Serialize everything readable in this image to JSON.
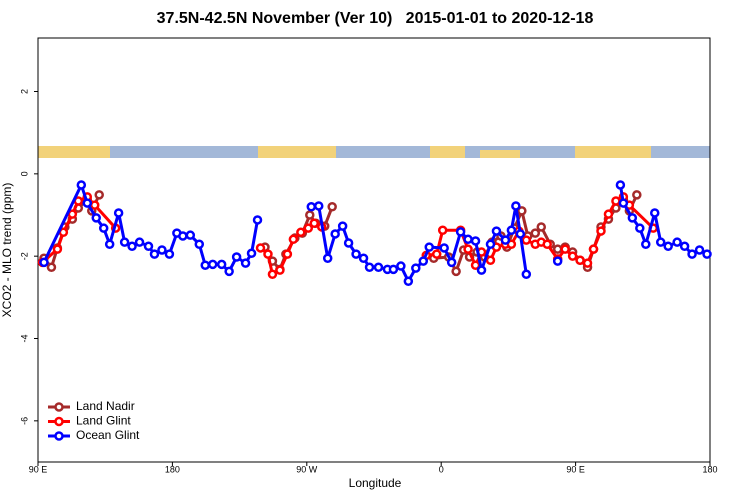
{
  "chart_data": {
    "type": "line",
    "title": "37.5N-42.5N November (Ver 10)   2015-01-01 to 2020-12-18",
    "xlabel": "Longitude",
    "ylabel": "XCO2 - MLO trend (ppm)",
    "xlim": [
      90,
      540
    ],
    "ylim": [
      -7,
      3.3
    ],
    "xticks": [
      {
        "value": 90,
        "label": "90 E"
      },
      180,
      {
        "value": 270,
        "label": "90 W"
      },
      {
        "value": 360,
        "label": "0"
      },
      {
        "value": 450,
        "label": "90 E"
      },
      {
        "value": 540,
        "label": "180"
      }
    ],
    "yticks": [
      2,
      0,
      -2,
      -4,
      -6
    ],
    "legend": "bottom-left",
    "series": [
      {
        "name": "Land Nadir",
        "color": "#a52a2a",
        "x": [
          94,
          99,
          103,
          108,
          113,
          117,
          123,
          126,
          131,
          null,
          242,
          247,
          252,
          256,
          262,
          267,
          272,
          276,
          282,
          287,
          null,
          355,
          365,
          370,
          375,
          379,
          384,
          389,
          394,
          400,
          404,
          409,
          414,
          418,
          423,
          427,
          433,
          438,
          443,
          448,
          453,
          458,
          462,
          467,
          472,
          477,
          482,
          486,
          491
        ],
        "values": [
          -2.05,
          -2.27,
          -1.8,
          -1.29,
          -1.1,
          -0.83,
          -0.63,
          -0.9,
          -0.51,
          null,
          -1.78,
          -2.12,
          -2.32,
          -1.95,
          -1.56,
          -1.44,
          -1.0,
          -1.2,
          -1.27,
          -0.8,
          null,
          -2.05,
          -2.02,
          -2.37,
          -1.85,
          -2.02,
          -1.9,
          -2.02,
          -1.66,
          -1.51,
          -1.78,
          -1.32,
          -0.9,
          -1.51,
          -1.44,
          -1.29,
          -1.71,
          -1.83,
          -1.78,
          -1.9,
          -2.1,
          -2.27,
          -1.83,
          -1.29,
          -1.1,
          -0.83,
          -0.63,
          -0.9,
          -0.51
        ]
      },
      {
        "name": "Land Glint",
        "color": "#ff0000",
        "x": [
          93,
          103,
          107,
          113,
          117,
          123,
          128,
          142,
          null,
          239,
          244,
          247,
          252,
          257,
          261,
          266,
          271,
          275,
          280,
          null,
          350,
          357,
          361,
          373,
          378,
          383,
          387,
          393,
          397,
          403,
          407,
          412,
          417,
          423,
          427,
          431,
          438,
          443,
          448,
          453,
          458,
          462,
          467,
          472,
          477,
          482,
          486,
          502
        ],
        "values": [
          -2.15,
          -1.83,
          -1.42,
          -0.98,
          -0.66,
          -0.56,
          -0.76,
          -1.32,
          null,
          -1.8,
          -1.95,
          -2.44,
          -2.34,
          -1.95,
          -1.59,
          -1.42,
          -1.32,
          -1.2,
          -1.29,
          null,
          -1.98,
          -1.95,
          -1.37,
          -1.37,
          -1.83,
          -2.22,
          -1.9,
          -2.1,
          -1.78,
          -1.71,
          -1.71,
          -1.39,
          -1.61,
          -1.71,
          -1.66,
          -1.71,
          -2.07,
          -1.83,
          -2.0,
          -2.1,
          -2.17,
          -1.83,
          -1.39,
          -0.98,
          -0.66,
          -0.56,
          -0.76,
          -1.32
        ]
      },
      {
        "name": "Ocean Glint",
        "color": "#0000ff",
        "x": [
          94,
          119,
          123,
          129,
          134,
          138,
          144,
          148,
          153,
          158,
          164,
          168,
          173,
          178,
          183,
          187,
          192,
          198,
          202,
          207,
          213,
          218,
          223,
          229,
          233,
          237,
          null,
          273,
          278,
          284,
          289,
          294,
          298,
          303,
          308,
          312,
          318,
          324,
          328,
          333,
          338,
          343,
          348,
          352,
          362,
          367,
          373,
          378,
          383,
          387,
          393,
          397,
          403,
          407,
          410,
          413,
          417,
          null,
          438,
          null,
          480,
          482,
          488,
          493,
          497,
          503,
          507,
          512,
          518,
          523,
          528,
          533,
          538
        ],
        "values": [
          -2.15,
          -0.27,
          -0.71,
          -1.07,
          -1.32,
          -1.71,
          -0.95,
          -1.66,
          -1.76,
          -1.66,
          -1.76,
          -1.95,
          -1.85,
          -1.95,
          -1.44,
          -1.51,
          -1.49,
          -1.71,
          -2.22,
          -2.2,
          -2.2,
          -2.37,
          -2.02,
          -2.17,
          -1.93,
          -1.12,
          null,
          -0.8,
          -0.78,
          -2.05,
          -1.46,
          -1.27,
          -1.68,
          -1.95,
          -2.05,
          -2.27,
          -2.27,
          -2.32,
          -2.32,
          -2.24,
          -2.61,
          -2.29,
          -2.12,
          -1.78,
          -1.8,
          -2.15,
          -1.41,
          -1.59,
          -1.63,
          -2.34,
          -1.71,
          -1.39,
          -1.61,
          -1.37,
          -0.78,
          -1.46,
          -2.44,
          null,
          -2.12,
          null,
          -0.27,
          -0.71,
          -1.07,
          -1.32,
          -1.71,
          -0.95,
          -1.66,
          -1.76,
          -1.66,
          -1.76,
          -1.95,
          -1.85,
          -1.95
        ]
      }
    ]
  }
}
